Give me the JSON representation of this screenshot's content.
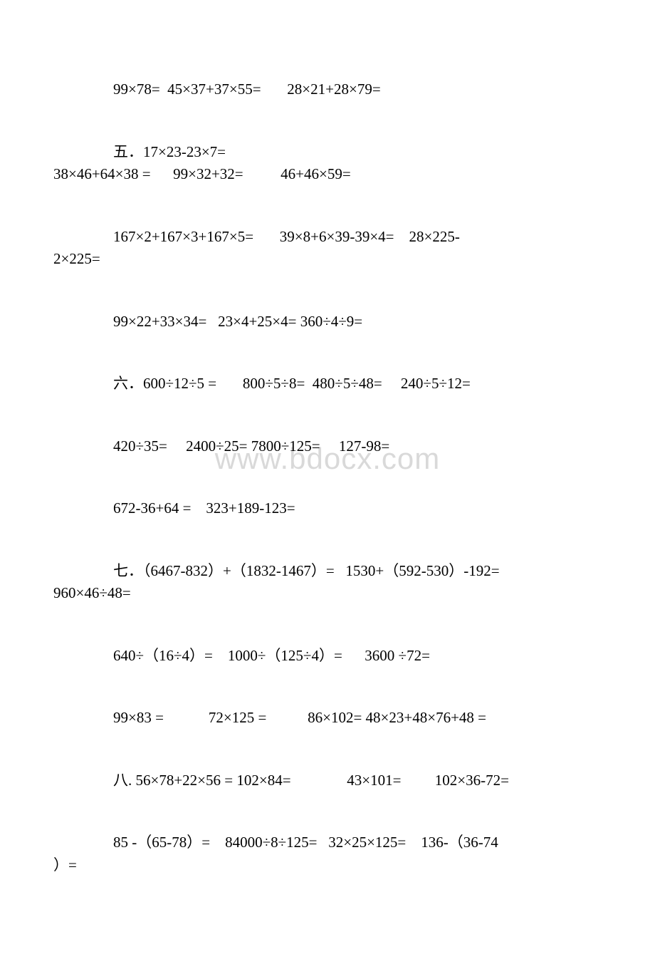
{
  "watermark": "www.bdocx.com",
  "lines": [
    {
      "text": "99×78=  45×37+37×55=       28×21+28×79=",
      "cls": "indent block"
    },
    {
      "text": "五．17×23-23×7=",
      "cls": "indent"
    },
    {
      "text": "38×46+64×38 =      99×32+32=          46+46×59=",
      "cls": "noindent block"
    },
    {
      "text": "167×2+167×3+167×5=       39×8+6×39-39×4=    28×225-",
      "cls": "indent"
    },
    {
      "text": "2×225=",
      "cls": "noindent block"
    },
    {
      "text": "99×22+33×34=   23×4+25×4= 360÷4÷9=",
      "cls": "indent block"
    },
    {
      "text": "六．600÷12÷5 =       800÷5÷8=  480÷5÷48=     240÷5÷12=",
      "cls": "indent block"
    },
    {
      "text": "420÷35=     2400÷25= 7800÷125=     127-98=",
      "cls": "indent block"
    },
    {
      "text": "672-36+64 =    323+189-123=",
      "cls": "indent block"
    },
    {
      "text": "七．（6467-832）+（1832-1467）=   1530+（592-530）-192=",
      "cls": "indent"
    },
    {
      "text": "960×46÷48=",
      "cls": "noindent block"
    },
    {
      "text": "640÷（16÷4）=    1000÷（125÷4）=      3600 ÷72=",
      "cls": "indent block"
    },
    {
      "text": "99×83 =            72×125 =           86×102= 48×23+48×76+48 =",
      "cls": "indent block"
    },
    {
      "text": "八. 56×78+22×56 = 102×84=               43×101=         102×36-72=",
      "cls": "indent block"
    },
    {
      "text": "85 -（65-78）=    84000÷8÷125=   32×25×125=    136-（36-74",
      "cls": "indent"
    },
    {
      "text": "）=",
      "cls": "noindent block"
    }
  ]
}
